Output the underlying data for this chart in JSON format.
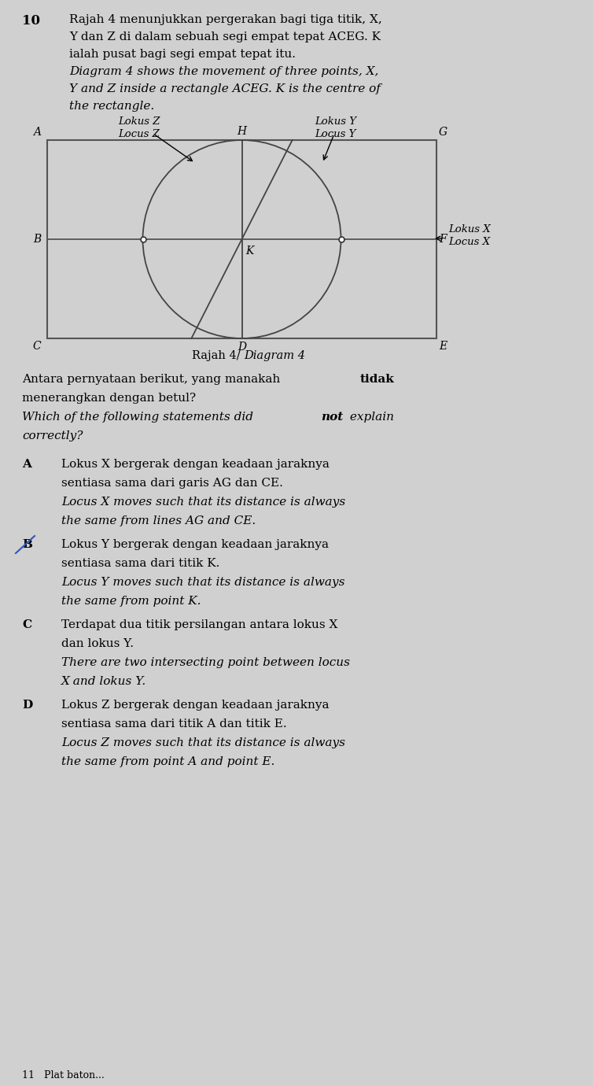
{
  "bg_color": "#d0d0d0",
  "fig_width": 7.54,
  "fig_height": 13.8,
  "dpi": 100,
  "q_number": "10",
  "q_lines": [
    [
      "Rajah 4 menunjukkan pergerakan bagi tiga titik, X,",
      false
    ],
    [
      "Y dan Z di dalam sebuah segi empat tepat ACEG. K",
      false
    ],
    [
      "ialah pusat bagi segi empat tepat itu.",
      false
    ],
    [
      "Diagram 4 shows the movement of three points, X,",
      true
    ],
    [
      "Y and Z inside a rectangle ACEG. K is the centre of",
      true
    ],
    [
      "the rectangle.",
      true
    ]
  ],
  "diagram_caption": "Rajah 4/ Diagram 4",
  "answer_intro": [
    [
      "Antara pernyataan berikut, yang manakah ",
      "tidak",
      ""
    ],
    [
      "menerangkan dengan betul?",
      "",
      ""
    ],
    [
      "Which of the following statements did ",
      "not",
      " explain"
    ],
    [
      "correctly?",
      "",
      ""
    ]
  ],
  "options": [
    {
      "label": "A",
      "ms_lines": [
        "Lokus X bergerak dengan keadaan jaraknya",
        "sentiasa sama dari garis AG dan CE."
      ],
      "en_lines": [
        "Locus X moves such that its distance is always",
        "the same from lines AG and CE."
      ],
      "pencil_mark": false
    },
    {
      "label": "B",
      "ms_lines": [
        "Lokus Y bergerak dengan keadaan jaraknya",
        "sentiasa sama dari titik K."
      ],
      "en_lines": [
        "Locus Y moves such that its distance is always",
        "the same from point K."
      ],
      "pencil_mark": true
    },
    {
      "label": "C",
      "ms_lines": [
        "Terdapat dua titik persilangan antara lokus X",
        "dan lokus Y."
      ],
      "en_lines": [
        "There are two intersecting point between locus",
        "X and lokus Y."
      ],
      "pencil_mark": false
    },
    {
      "label": "D",
      "ms_lines": [
        "Lokus Z bergerak dengan keadaan jaraknya",
        "sentiasa sama dari titik A dan titik E."
      ],
      "en_lines": [
        "Locus Z moves such that its distance is always",
        "the same from point A and point E."
      ],
      "pencil_mark": false
    }
  ],
  "footer": "11   Plat baton..."
}
